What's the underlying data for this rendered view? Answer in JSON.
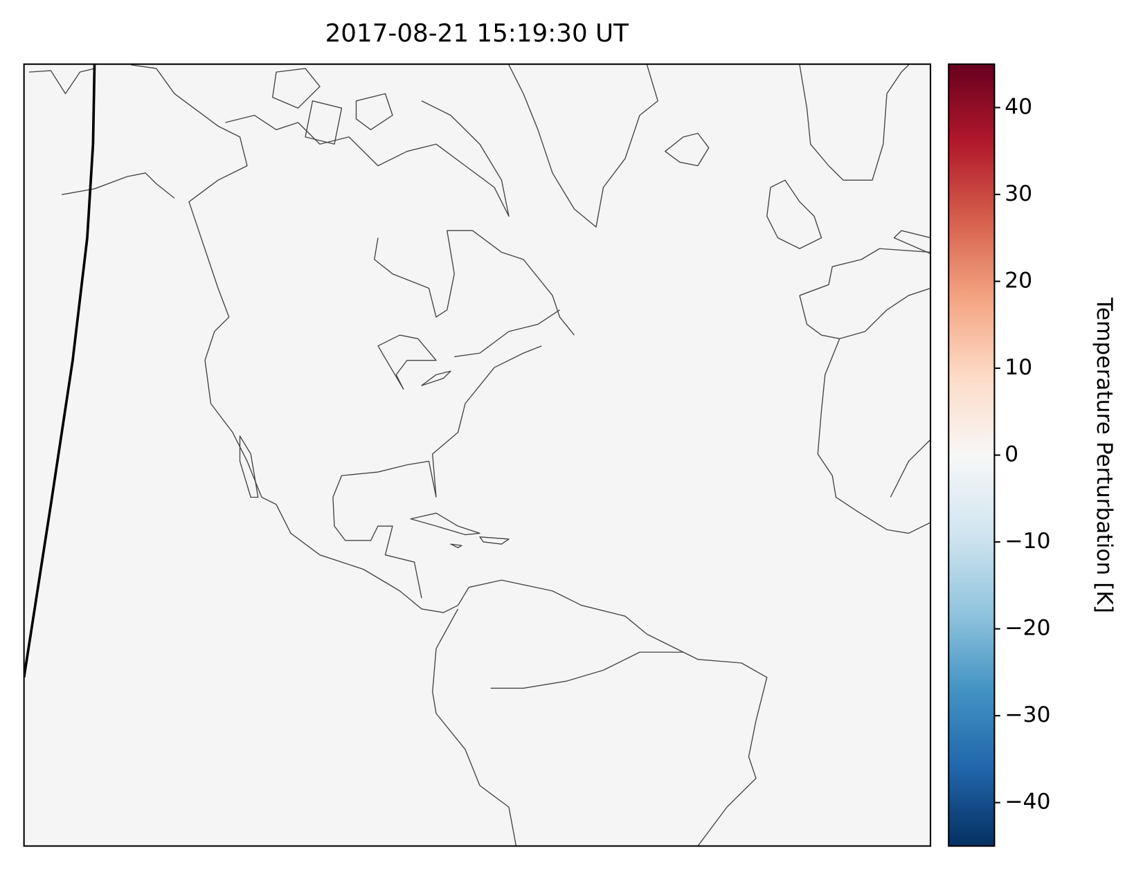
{
  "chart_data": {
    "type": "map",
    "title": "2017-08-21 15:19:30 UT",
    "background": "#f5f5f5",
    "colorbar_label": "Temperature Perturbation [K]",
    "colormap": [
      "#67001f",
      "#b2182b",
      "#d6604d",
      "#f4a582",
      "#fddbc7",
      "#f7f7f7",
      "#d1e5f0",
      "#92c5de",
      "#4393c3",
      "#2166ac",
      "#053061"
    ],
    "ylim": [
      -45,
      45
    ],
    "yticks": [
      {
        "value": -40,
        "label": "−40"
      },
      {
        "value": -30,
        "label": "−30"
      },
      {
        "value": -20,
        "label": "−20"
      },
      {
        "value": -10,
        "label": "−10"
      },
      0,
      10,
      20,
      30,
      40
    ]
  }
}
